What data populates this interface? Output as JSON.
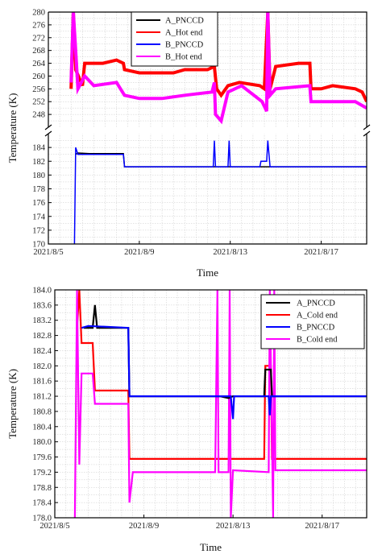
{
  "chart_data": [
    {
      "type": "line",
      "x_tick_labels": [
        "2021/8/5",
        "2021/8/9",
        "2021/8/13",
        "2021/8/17"
      ],
      "x_tick_values": [
        5,
        9,
        13,
        17
      ],
      "xlim": [
        5,
        19
      ],
      "xlabel": "Time",
      "ylabel": "Temperature (K)",
      "axis_break": {
        "lower_range": [
          170,
          186
        ],
        "upper_range": [
          244,
          280
        ]
      },
      "y_ticks_lower": [
        170,
        172,
        174,
        176,
        178,
        180,
        182,
        184
      ],
      "y_ticks_upper": [
        248,
        252,
        256,
        260,
        264,
        268,
        272,
        276,
        280
      ],
      "grid": true,
      "legend_position": "top-center",
      "colors": {
        "A_PNCCD": "#000000",
        "A_Hot end": "#ff0000",
        "B_PNCCD": "#0000ff",
        "B_Hot end": "#ff00ff"
      },
      "series": [
        {
          "name": "A_PNCCD",
          "points": [
            [
              6.2,
              183.0
            ],
            [
              6.3,
              183.2
            ],
            [
              6.8,
              183.1
            ],
            [
              8.3,
              183.1
            ],
            [
              8.35,
              181.2
            ],
            [
              12.3,
              181.2
            ],
            [
              12.5,
              181.2
            ],
            [
              12.9,
              181.2
            ],
            [
              14.4,
              181.2
            ],
            [
              14.8,
              181.2
            ],
            [
              19,
              181.2
            ]
          ]
        },
        {
          "name": "A_Hot end",
          "points": [
            [
              6.0,
              256
            ],
            [
              6.1,
              280
            ],
            [
              6.2,
              262
            ],
            [
              6.5,
              257
            ],
            [
              6.6,
              264
            ],
            [
              7.0,
              264
            ],
            [
              7.4,
              264
            ],
            [
              8.0,
              265
            ],
            [
              8.3,
              264
            ],
            [
              8.35,
              262
            ],
            [
              9.0,
              261
            ],
            [
              10.0,
              261
            ],
            [
              10.5,
              261
            ],
            [
              11.0,
              262
            ],
            [
              12.0,
              262
            ],
            [
              12.3,
              263
            ],
            [
              12.4,
              256
            ],
            [
              12.6,
              254
            ],
            [
              12.9,
              257
            ],
            [
              13.4,
              258
            ],
            [
              14.3,
              257
            ],
            [
              14.5,
              256
            ],
            [
              14.65,
              280
            ],
            [
              14.75,
              256
            ],
            [
              15.0,
              263
            ],
            [
              16.0,
              264
            ],
            [
              16.5,
              264
            ],
            [
              16.55,
              256
            ],
            [
              17.0,
              256
            ],
            [
              17.5,
              257
            ],
            [
              18.5,
              256
            ],
            [
              18.8,
              255
            ],
            [
              19.0,
              252
            ]
          ]
        },
        {
          "name": "B_PNCCD",
          "points": [
            [
              6.15,
              170
            ],
            [
              6.2,
              184
            ],
            [
              6.3,
              183.0
            ],
            [
              8.3,
              183.0
            ],
            [
              8.35,
              181.2
            ],
            [
              12.25,
              181.2
            ],
            [
              12.3,
              185
            ],
            [
              12.35,
              181.2
            ],
            [
              12.9,
              181.2
            ],
            [
              12.95,
              185
            ],
            [
              13.0,
              181.2
            ],
            [
              14.3,
              181.2
            ],
            [
              14.35,
              182
            ],
            [
              14.6,
              182
            ],
            [
              14.65,
              185
            ],
            [
              14.75,
              181.2
            ],
            [
              19.0,
              181.2
            ]
          ]
        },
        {
          "name": "B_Hot end",
          "points": [
            [
              6.0,
              258
            ],
            [
              6.1,
              280
            ],
            [
              6.2,
              268
            ],
            [
              6.3,
              256
            ],
            [
              6.6,
              260
            ],
            [
              7.0,
              257
            ],
            [
              8.0,
              258
            ],
            [
              8.35,
              254
            ],
            [
              9.0,
              253
            ],
            [
              10.0,
              253
            ],
            [
              11.0,
              254
            ],
            [
              12.2,
              255
            ],
            [
              12.3,
              258
            ],
            [
              12.35,
              248
            ],
            [
              12.6,
              246
            ],
            [
              12.9,
              255
            ],
            [
              13.5,
              257
            ],
            [
              14.4,
              252
            ],
            [
              14.6,
              249
            ],
            [
              14.65,
              280
            ],
            [
              14.75,
              254
            ],
            [
              15.0,
              256
            ],
            [
              16.5,
              257
            ],
            [
              16.55,
              252
            ],
            [
              18.5,
              252
            ],
            [
              19.0,
              250
            ]
          ]
        }
      ]
    },
    {
      "type": "line",
      "x_tick_labels": [
        "2021/8/5",
        "2021/8/9",
        "2021/8/13",
        "2021/8/17"
      ],
      "x_tick_values": [
        5,
        9,
        13,
        17
      ],
      "xlim": [
        5,
        19
      ],
      "ylim": [
        178.0,
        184.0
      ],
      "y_ticks": [
        "178.0",
        "178.4",
        "178.8",
        "179.2",
        "179.6",
        "180.0",
        "180.4",
        "180.8",
        "181.2",
        "181.6",
        "182.0",
        "182.4",
        "182.8",
        "183.2",
        "183.6",
        "184.0"
      ],
      "xlabel": "Time",
      "ylabel": "Temperature (K)",
      "grid": true,
      "legend_position": "top-right",
      "colors": {
        "A_PNCCD": "#000000",
        "A_Cold end": "#ff0000",
        "B_PNCCD": "#0000ff",
        "B_Cold end": "#ff00ff"
      },
      "series": [
        {
          "name": "A_PNCCD",
          "points": [
            [
              6.3,
              183.0
            ],
            [
              6.7,
              183.0
            ],
            [
              6.8,
              183.6
            ],
            [
              6.9,
              183.0
            ],
            [
              8.3,
              183.0
            ],
            [
              8.35,
              181.2
            ],
            [
              12.4,
              181.2
            ],
            [
              12.8,
              181.15
            ],
            [
              13.0,
              181.2
            ],
            [
              14.4,
              181.2
            ],
            [
              14.45,
              181.9
            ],
            [
              14.7,
              181.9
            ],
            [
              14.75,
              181.2
            ],
            [
              19.0,
              181.2
            ]
          ]
        },
        {
          "name": "A_Cold end",
          "points": [
            [
              6.0,
              183.0
            ],
            [
              6.1,
              184.0
            ],
            [
              6.2,
              182.6
            ],
            [
              6.7,
              182.6
            ],
            [
              6.8,
              181.35
            ],
            [
              8.3,
              181.35
            ],
            [
              8.35,
              179.55
            ],
            [
              12.3,
              179.55
            ],
            [
              12.9,
              179.55
            ],
            [
              14.4,
              179.55
            ],
            [
              14.45,
              182.0
            ],
            [
              14.7,
              182.0
            ],
            [
              14.75,
              179.55
            ],
            [
              19.0,
              179.55
            ]
          ]
        },
        {
          "name": "B_PNCCD",
          "points": [
            [
              6.2,
              183.0
            ],
            [
              6.5,
              183.05
            ],
            [
              8.3,
              183.0
            ],
            [
              8.35,
              181.2
            ],
            [
              12.9,
              181.2
            ],
            [
              13.0,
              180.6
            ],
            [
              13.05,
              181.2
            ],
            [
              14.6,
              181.2
            ],
            [
              14.65,
              180.7
            ],
            [
              14.7,
              181.2
            ],
            [
              19.0,
              181.2
            ]
          ]
        },
        {
          "name": "B_Cold end",
          "points": [
            [
              5.9,
              178.0
            ],
            [
              6.0,
              184.0
            ],
            [
              6.1,
              179.4
            ],
            [
              6.2,
              181.8
            ],
            [
              6.7,
              181.8
            ],
            [
              6.8,
              181.0
            ],
            [
              8.3,
              181.0
            ],
            [
              8.35,
              178.4
            ],
            [
              8.5,
              179.2
            ],
            [
              12.2,
              179.2
            ],
            [
              12.3,
              184.0
            ],
            [
              12.35,
              179.2
            ],
            [
              12.8,
              179.2
            ],
            [
              12.85,
              184.0
            ],
            [
              12.9,
              178.0
            ],
            [
              13.0,
              179.25
            ],
            [
              14.6,
              179.2
            ],
            [
              14.65,
              184.0
            ],
            [
              14.8,
              178.0
            ],
            [
              14.85,
              184.0
            ],
            [
              14.9,
              179.25
            ],
            [
              19.0,
              179.25
            ]
          ]
        }
      ]
    }
  ]
}
